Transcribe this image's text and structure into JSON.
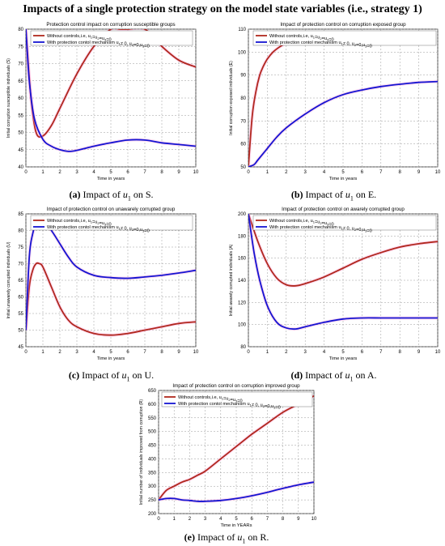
{
  "figure_title": "Impacts of a single protection strategy on the model state variables (i.e., strategy 1)",
  "colors": {
    "without": "#b0281e",
    "with": "#1414d2",
    "grid": "#9a9a9a",
    "glow": "#ff9cd6"
  },
  "panels": [
    {
      "caption_label": "(a)",
      "caption_text": "Impact of",
      "caption_var": "u",
      "caption_sub": "1",
      "caption_tail": "on S.",
      "chart_data": {
        "type": "line",
        "title": "Protection control impact on corruption susceptible groups",
        "xlabel": "Time in years",
        "ylabel": "Initial corruption susceptible individuals (S)",
        "xlim": [
          0,
          10
        ],
        "ylim": [
          40,
          80
        ],
        "xticks": [
          0,
          1,
          2,
          3,
          4,
          5,
          6,
          7,
          8,
          9,
          10
        ],
        "yticks": [
          40,
          45,
          50,
          55,
          60,
          65,
          70,
          75,
          80
        ],
        "grid": true,
        "legend_position": "top",
        "legend": [
          "Without controls,i.e, u1=u2=u3=0",
          "With protection contol mechanism  u1≠ 0, u2=0,u3=0"
        ],
        "series": [
          {
            "x": [
              0,
              0.3,
              0.6,
              1,
              1.5,
              2,
              3,
              4,
              5,
              5.5,
              6,
              7,
              8,
              9,
              10
            ],
            "y": [
              80,
              60,
              50,
              49,
              52,
              57,
              67,
              75,
              80,
              80,
              80,
              80,
              75,
              71,
              69
            ]
          },
          {
            "x": [
              0,
              0.2,
              0.5,
              1,
              1.5,
              2,
              2.5,
              3,
              4,
              5,
              6,
              7,
              8,
              9,
              10
            ],
            "y": [
              80,
              65,
              54,
              48,
              46,
              45,
              44.5,
              44.8,
              46,
              47,
              47.8,
              47.8,
              47,
              46.5,
              46
            ]
          }
        ]
      }
    },
    {
      "caption_label": "(b)",
      "caption_text": "Impact of",
      "caption_var": "u",
      "caption_sub": "1",
      "caption_tail": "on E.",
      "chart_data": {
        "type": "line",
        "title": "Impact of protection control on corruption exposed group",
        "xlabel": "Time in years",
        "ylabel": "Initial corruption exposed individuals (E)",
        "xlim": [
          0,
          10
        ],
        "ylim": [
          50,
          110
        ],
        "xticks": [
          0,
          1,
          2,
          3,
          4,
          5,
          6,
          7,
          8,
          9,
          10
        ],
        "yticks": [
          50,
          60,
          70,
          80,
          90,
          100,
          110
        ],
        "grid": true,
        "legend_position": "top",
        "legend": [
          "Without controls,i.e, u1=u2=u3=0",
          "With protection contol mechanism  u1≠ 0, u2=0,u3=0"
        ],
        "series": [
          {
            "x": [
              0,
              0.2,
              0.4,
              0.6,
              0.8,
              1,
              1.3,
              1.6,
              2
            ],
            "y": [
              50,
              72,
              83,
              90,
              94,
              97,
              100,
              102,
              104
            ]
          },
          {
            "x": [
              0,
              0.3,
              0.5,
              1,
              1.5,
              2,
              3,
              4,
              5,
              6,
              7,
              8,
              9,
              10
            ],
            "y": [
              50,
              51,
              53,
              58,
              63,
              67,
              73,
              78,
              81.5,
              83.5,
              85,
              86,
              86.8,
              87.2
            ]
          }
        ]
      }
    },
    {
      "caption_label": "(c)",
      "caption_text": "Impact of",
      "caption_var": "u",
      "caption_sub": "1",
      "caption_tail": "on U.",
      "chart_data": {
        "type": "line",
        "title": "Impact of protection control on unawarely corrupted group",
        "xlabel": "Time in years",
        "ylabel": "Initial unawarely corrupted individuals (U)",
        "xlim": [
          0,
          10
        ],
        "ylim": [
          45,
          85
        ],
        "xticks": [
          0,
          1,
          2,
          3,
          4,
          5,
          6,
          7,
          8,
          9,
          10
        ],
        "yticks": [
          45,
          50,
          55,
          60,
          65,
          70,
          75,
          80,
          85
        ],
        "grid": true,
        "legend_position": "top",
        "legend": [
          "Without controls,i.e, u1=u2=u3=0",
          "With protection contol mechanism  u1≠ 0, u2=0,u3=0"
        ],
        "series": [
          {
            "x": [
              0,
              0.2,
              0.4,
              0.6,
              0.8,
              1,
              1.5,
              2,
              2.5,
              3,
              4,
              5,
              6,
              7,
              8,
              9,
              10
            ],
            "y": [
              50,
              63,
              68,
              70,
              70,
              69,
              63,
              57,
              53,
              51,
              49,
              48.5,
              49,
              50,
              51,
              52,
              52.5
            ]
          },
          {
            "x": [
              0,
              0.2,
              0.4,
              0.6,
              0.8,
              1,
              1.5,
              2,
              2.5,
              3,
              4,
              5,
              6,
              7,
              8,
              9,
              10
            ],
            "y": [
              50,
              72,
              79,
              82,
              83,
              83,
              80,
              76,
              72,
              69,
              66.5,
              65.8,
              65.6,
              66,
              66.5,
              67.2,
              68
            ]
          }
        ]
      }
    },
    {
      "caption_label": "(d)",
      "caption_text": "Impact of",
      "caption_var": "u",
      "caption_sub": "1",
      "caption_tail": "on A.",
      "chart_data": {
        "type": "line",
        "title": "Impact of protection control on awarely corrupted group",
        "xlabel": "Time in years",
        "ylabel": "Initial awarely corrupted individuals (A)",
        "xlim": [
          0,
          10
        ],
        "ylim": [
          80,
          200
        ],
        "xticks": [
          0,
          1,
          2,
          3,
          4,
          5,
          6,
          7,
          8,
          9,
          10
        ],
        "yticks": [
          80,
          100,
          120,
          140,
          160,
          180,
          200
        ],
        "grid": true,
        "legend_position": "top",
        "legend": [
          "Without controls,i.e, u1=u2=u3=0",
          "With protection contol mechanism  u1≠ 0, u2=0,u3=0"
        ],
        "series": [
          {
            "x": [
              0,
              0.5,
              1,
              1.5,
              2,
              2.5,
              3,
              4,
              5,
              6,
              7,
              8,
              9,
              10
            ],
            "y": [
              200,
              175,
              155,
              142,
              136,
              135,
              137,
              143,
              151,
              159,
              165,
              170,
              173,
              175
            ]
          },
          {
            "x": [
              0,
              0.3,
              0.6,
              1,
              1.5,
              2,
              2.5,
              3,
              4,
              5,
              6,
              7,
              8,
              9,
              10
            ],
            "y": [
              200,
              165,
              140,
              117,
              102,
              97,
              96,
              98,
              102,
              105,
              106,
              106,
              106,
              106,
              106
            ]
          }
        ]
      }
    },
    {
      "caption_label": "(e)",
      "caption_text": "Impact of",
      "caption_var": "u",
      "caption_sub": "1",
      "caption_tail": "on R.",
      "chart_data": {
        "type": "line",
        "title": "Impact of protection control on corruption improved group",
        "xlabel": "Time in YEARs",
        "ylabel": "Initial number of individuals improved from corruption (R)",
        "xlim": [
          0,
          10
        ],
        "ylim": [
          200,
          650
        ],
        "xticks": [
          0,
          1,
          2,
          3,
          4,
          5,
          6,
          7,
          8,
          9,
          10
        ],
        "yticks": [
          200,
          250,
          300,
          350,
          400,
          450,
          500,
          550,
          600,
          650
        ],
        "grid": true,
        "legend_position": "top",
        "legend": [
          "Without controls,i.e, u1=u2=u3=0",
          "With protection contol mechanism  u1≠ 0, u2=0,u3=0"
        ],
        "series": [
          {
            "x": [
              0,
              0.5,
              1,
              1.5,
              2,
              2.5,
              3,
              4,
              5,
              6,
              7,
              8,
              9,
              10
            ],
            "y": [
              250,
              285,
              300,
              315,
              325,
              340,
              355,
              400,
              445,
              490,
              530,
              570,
              600,
              630
            ]
          },
          {
            "x": [
              0,
              0.5,
              1,
              1.5,
              2,
              2.5,
              3,
              4,
              5,
              6,
              7,
              8,
              9,
              10
            ],
            "y": [
              250,
              255,
              255,
              250,
              248,
              245,
              245,
              248,
              255,
              265,
              278,
              292,
              305,
              315
            ]
          }
        ]
      }
    }
  ]
}
